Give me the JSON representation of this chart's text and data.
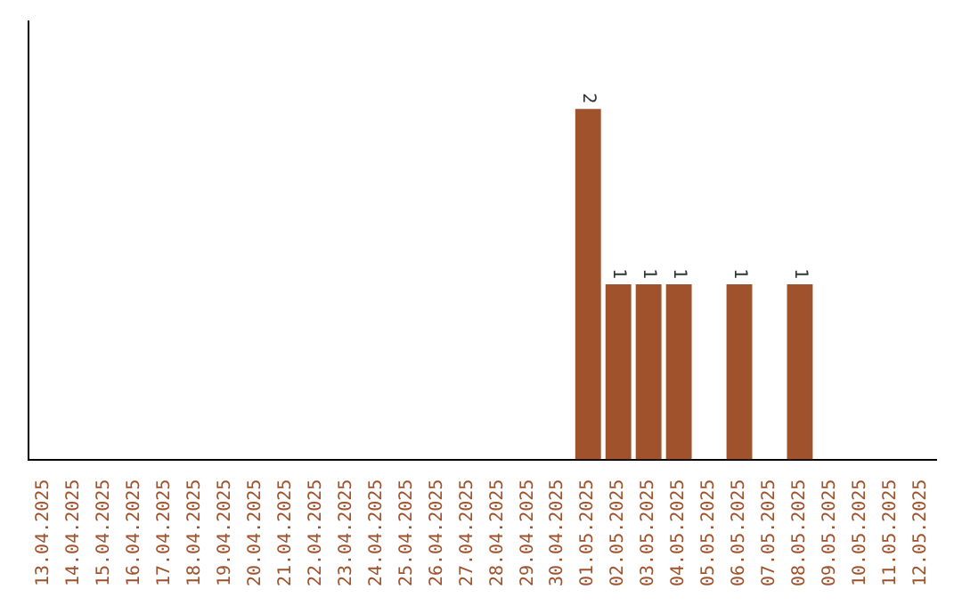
{
  "chart_data": {
    "type": "bar",
    "categories": [
      "13.04.2025",
      "14.04.2025",
      "15.04.2025",
      "16.04.2025",
      "17.04.2025",
      "18.04.2025",
      "19.04.2025",
      "20.04.2025",
      "21.04.2025",
      "22.04.2025",
      "23.04.2025",
      "24.04.2025",
      "25.04.2025",
      "26.04.2025",
      "27.04.2025",
      "28.04.2025",
      "29.04.2025",
      "30.04.2025",
      "01.05.2025",
      "02.05.2025",
      "03.05.2025",
      "04.05.2025",
      "05.05.2025",
      "06.05.2025",
      "07.05.2025",
      "08.05.2025",
      "09.05.2025",
      "10.05.2025",
      "11.05.2025",
      "12.05.2025"
    ],
    "values": [
      null,
      null,
      null,
      null,
      null,
      null,
      null,
      null,
      null,
      null,
      null,
      null,
      null,
      null,
      null,
      null,
      null,
      null,
      2,
      1,
      1,
      1,
      null,
      1,
      null,
      1,
      null,
      null,
      null,
      null
    ],
    "data_labels": true,
    "color": "#a0522d",
    "grid": false,
    "legend": false,
    "tick_labels": "x"
  }
}
